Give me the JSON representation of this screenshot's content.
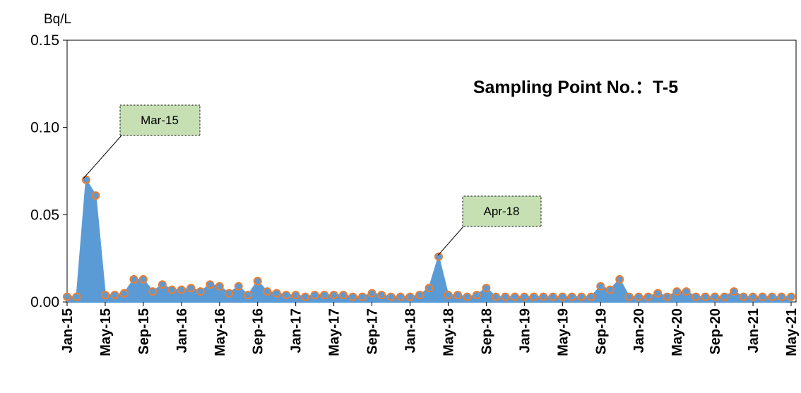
{
  "chart_data": {
    "type": "area",
    "title": "Sampling Point No.：T-5",
    "y_unit": "Bq/L",
    "annotations": [
      "Mar-15",
      "Apr-18"
    ],
    "categories": [
      "Jan-15",
      null,
      null,
      null,
      "May-15",
      null,
      null,
      null,
      "Sep-15",
      null,
      null,
      null,
      "Jan-16",
      null,
      null,
      null,
      "May-16",
      null,
      null,
      null,
      "Sep-16",
      null,
      null,
      null,
      "Jan-17",
      null,
      null,
      null,
      "May-17",
      null,
      null,
      null,
      "Sep-17",
      null,
      null,
      null,
      "Jan-18",
      null,
      null,
      null,
      "May-18",
      null,
      null,
      null,
      "Sep-18",
      null,
      null,
      null,
      "Jan-19",
      null,
      null,
      null,
      "May-19",
      null,
      null,
      null,
      "Sep-19",
      null,
      null,
      null,
      "Jan-20",
      null,
      null,
      null,
      "May-20",
      null,
      null,
      null,
      "Sep-20",
      null,
      null,
      null,
      "Jan-21",
      null,
      null,
      null,
      "May-21"
    ],
    "values": [
      0.003,
      0.003,
      0.07,
      0.061,
      0.004,
      0.004,
      0.005,
      0.013,
      0.013,
      0.006,
      0.01,
      0.007,
      0.007,
      0.008,
      0.006,
      0.01,
      0.009,
      0.005,
      0.009,
      0.004,
      0.012,
      0.006,
      0.005,
      0.004,
      0.004,
      0.003,
      0.004,
      0.004,
      0.004,
      0.004,
      0.003,
      0.003,
      0.005,
      0.004,
      0.003,
      0.003,
      0.003,
      0.004,
      0.008,
      0.026,
      0.004,
      0.004,
      0.003,
      0.004,
      0.008,
      0.003,
      0.003,
      0.003,
      0.003,
      0.003,
      0.003,
      0.003,
      0.003,
      0.003,
      0.003,
      0.003,
      0.009,
      0.007,
      0.013,
      0.003,
      0.003,
      0.003,
      0.005,
      0.003,
      0.006,
      0.006,
      0.003,
      0.003,
      0.003,
      0.003,
      0.006,
      0.003,
      0.003,
      0.003,
      0.003,
      0.003,
      0.003
    ],
    "color": "#5b9bd5",
    "marker_edge_color": "#ed7d31",
    "ylim": [
      0,
      0.15
    ],
    "yticks": [
      {
        "value": 0,
        "label": "0.00"
      },
      {
        "value": 0.05,
        "label": "0.05"
      },
      {
        "value": 0.1,
        "label": "0.10"
      },
      {
        "value": 0.15,
        "label": "0.15"
      }
    ],
    "grid": false
  }
}
